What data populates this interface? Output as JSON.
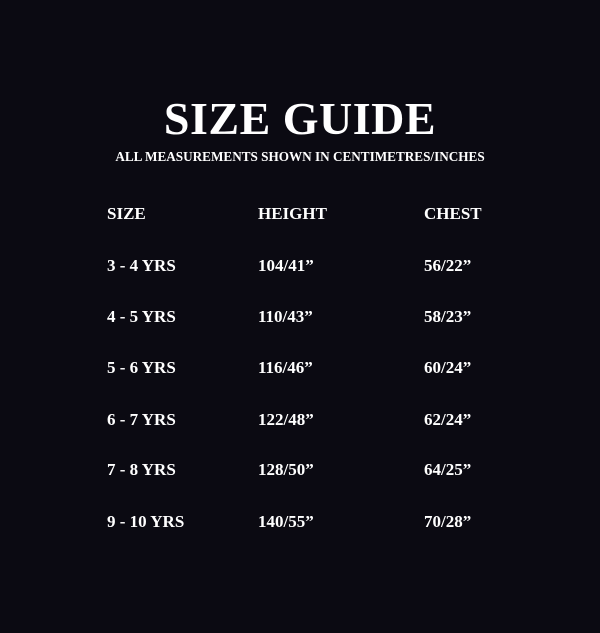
{
  "title": "SIZE GUIDE",
  "subtitle": "ALL MEASUREMENTS SHOWN IN CENTIMETRES/INCHES",
  "table": {
    "headers": [
      "SIZE",
      "HEIGHT",
      "CHEST"
    ],
    "rows": [
      [
        "3 - 4 YRS",
        "104/41”",
        "56/22”"
      ],
      [
        "4 - 5 YRS",
        "110/43”",
        "58/23”"
      ],
      [
        "5 - 6 YRS",
        "116/46”",
        "60/24”"
      ],
      [
        "6 - 7 YRS",
        "122/48”",
        "62/24”"
      ],
      [
        "7 - 8 YRS",
        "128/50”",
        "64/25”"
      ],
      [
        "9 - 10 YRS",
        "140/55”",
        "70/28”"
      ]
    ]
  },
  "colors": {
    "background": "#0b0a12",
    "text": "#ffffff"
  }
}
